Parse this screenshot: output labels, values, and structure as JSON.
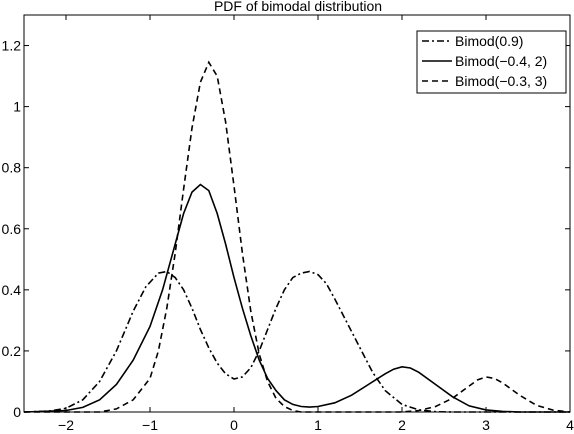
{
  "chart_data": {
    "type": "line",
    "title": "PDF of bimodal distribution",
    "xlabel": "",
    "ylabel": "",
    "xlim": [
      -2.5,
      4
    ],
    "ylim": [
      0,
      1.3
    ],
    "grid": false,
    "legend_position": "top-right",
    "x_ticks": [
      "−2",
      "−1",
      "0",
      "1",
      "2",
      "3",
      "4"
    ],
    "x_tick_values": [
      -2,
      -1,
      0,
      1,
      2,
      3,
      4
    ],
    "y_ticks": [
      "0",
      "0.2",
      "0.4",
      "0.6",
      "0.8",
      "1",
      "1.2"
    ],
    "y_tick_values": [
      0,
      0.2,
      0.4,
      0.6,
      0.8,
      1.0,
      1.2
    ],
    "series": [
      {
        "name": "Bimod(0.9)",
        "line_style": "dashdot",
        "color": "#000000",
        "points": [
          [
            -2.5,
            0.0
          ],
          [
            -2.2,
            0.003
          ],
          [
            -2.0,
            0.012
          ],
          [
            -1.8,
            0.04
          ],
          [
            -1.6,
            0.1
          ],
          [
            -1.4,
            0.2
          ],
          [
            -1.2,
            0.33
          ],
          [
            -1.05,
            0.41
          ],
          [
            -0.9,
            0.455
          ],
          [
            -0.8,
            0.46
          ],
          [
            -0.7,
            0.44
          ],
          [
            -0.6,
            0.4
          ],
          [
            -0.5,
            0.34
          ],
          [
            -0.4,
            0.27
          ],
          [
            -0.3,
            0.21
          ],
          [
            -0.2,
            0.16
          ],
          [
            -0.1,
            0.125
          ],
          [
            0.0,
            0.108
          ],
          [
            0.1,
            0.115
          ],
          [
            0.2,
            0.145
          ],
          [
            0.3,
            0.2
          ],
          [
            0.4,
            0.27
          ],
          [
            0.5,
            0.34
          ],
          [
            0.6,
            0.4
          ],
          [
            0.7,
            0.44
          ],
          [
            0.8,
            0.455
          ],
          [
            0.9,
            0.46
          ],
          [
            1.0,
            0.45
          ],
          [
            1.1,
            0.42
          ],
          [
            1.2,
            0.37
          ],
          [
            1.35,
            0.29
          ],
          [
            1.5,
            0.21
          ],
          [
            1.65,
            0.13
          ],
          [
            1.8,
            0.07
          ],
          [
            2.0,
            0.025
          ],
          [
            2.2,
            0.007
          ],
          [
            2.4,
            0.001
          ],
          [
            2.6,
            0.0
          ],
          [
            4.0,
            0.0
          ]
        ]
      },
      {
        "name": "Bimod(−0.4, 2)",
        "line_style": "solid",
        "color": "#000000",
        "points": [
          [
            -2.5,
            0.0
          ],
          [
            -2.0,
            0.005
          ],
          [
            -1.8,
            0.015
          ],
          [
            -1.6,
            0.04
          ],
          [
            -1.4,
            0.09
          ],
          [
            -1.2,
            0.17
          ],
          [
            -1.0,
            0.28
          ],
          [
            -0.85,
            0.4
          ],
          [
            -0.7,
            0.55
          ],
          [
            -0.6,
            0.65
          ],
          [
            -0.5,
            0.72
          ],
          [
            -0.4,
            0.745
          ],
          [
            -0.3,
            0.725
          ],
          [
            -0.2,
            0.65
          ],
          [
            -0.1,
            0.55
          ],
          [
            0.0,
            0.44
          ],
          [
            0.1,
            0.34
          ],
          [
            0.2,
            0.25
          ],
          [
            0.3,
            0.17
          ],
          [
            0.4,
            0.11
          ],
          [
            0.5,
            0.07
          ],
          [
            0.6,
            0.04
          ],
          [
            0.7,
            0.025
          ],
          [
            0.8,
            0.018
          ],
          [
            0.9,
            0.016
          ],
          [
            1.0,
            0.018
          ],
          [
            1.2,
            0.03
          ],
          [
            1.4,
            0.055
          ],
          [
            1.6,
            0.09
          ],
          [
            1.8,
            0.125
          ],
          [
            1.9,
            0.14
          ],
          [
            2.0,
            0.148
          ],
          [
            2.1,
            0.144
          ],
          [
            2.2,
            0.13
          ],
          [
            2.4,
            0.09
          ],
          [
            2.6,
            0.05
          ],
          [
            2.8,
            0.02
          ],
          [
            3.0,
            0.007
          ],
          [
            3.2,
            0.002
          ],
          [
            3.4,
            0.0
          ],
          [
            4.0,
            0.0
          ]
        ]
      },
      {
        "name": "Bimod(−0.3, 3)",
        "line_style": "dashed",
        "color": "#000000",
        "points": [
          [
            -2.5,
            0.0
          ],
          [
            -1.6,
            0.0
          ],
          [
            -1.4,
            0.01
          ],
          [
            -1.2,
            0.04
          ],
          [
            -1.0,
            0.11
          ],
          [
            -0.9,
            0.2
          ],
          [
            -0.8,
            0.34
          ],
          [
            -0.7,
            0.52
          ],
          [
            -0.6,
            0.73
          ],
          [
            -0.5,
            0.93
          ],
          [
            -0.4,
            1.08
          ],
          [
            -0.3,
            1.145
          ],
          [
            -0.2,
            1.1
          ],
          [
            -0.1,
            0.95
          ],
          [
            0.0,
            0.74
          ],
          [
            0.1,
            0.52
          ],
          [
            0.2,
            0.33
          ],
          [
            0.3,
            0.19
          ],
          [
            0.4,
            0.1
          ],
          [
            0.5,
            0.045
          ],
          [
            0.6,
            0.018
          ],
          [
            0.7,
            0.005
          ],
          [
            0.8,
            0.0
          ],
          [
            2.0,
            0.0
          ],
          [
            2.2,
            0.005
          ],
          [
            2.4,
            0.018
          ],
          [
            2.6,
            0.045
          ],
          [
            2.8,
            0.085
          ],
          [
            2.9,
            0.105
          ],
          [
            3.0,
            0.115
          ],
          [
            3.1,
            0.11
          ],
          [
            3.2,
            0.095
          ],
          [
            3.4,
            0.055
          ],
          [
            3.6,
            0.022
          ],
          [
            3.8,
            0.006
          ],
          [
            4.0,
            0.0
          ]
        ]
      }
    ]
  }
}
